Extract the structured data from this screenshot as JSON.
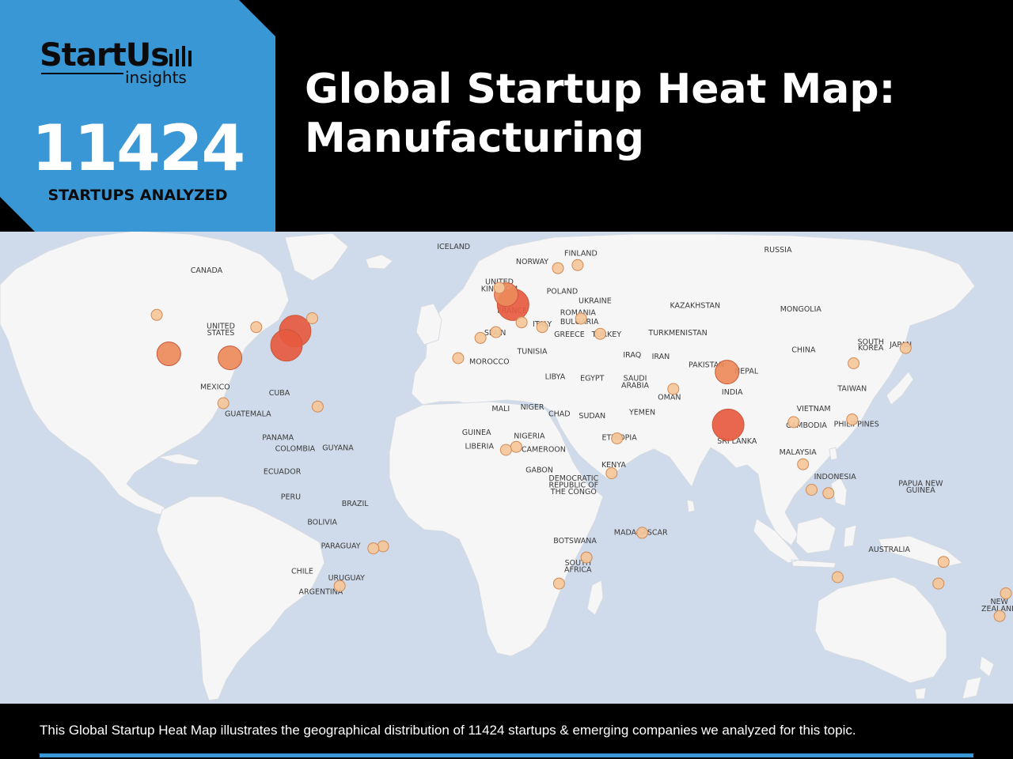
{
  "header": {
    "brand_name": "StartUs",
    "brand_sub": "insights",
    "startups_count": "11424",
    "startups_label": "STARTUPS ANALYZED",
    "title_line1": "Global Startup Heat Map:",
    "title_line2": "Manufacturing"
  },
  "footer": {
    "caption": "This Global Startup Heat Map illustrates the geographical distribution of 11424 startups & emerging companies we analyzed for this topic."
  },
  "colors": {
    "brand_blue": "#3a97d5",
    "ocean": "#cfdbea",
    "land": "#f6f6f6",
    "hot": "#e65a3f",
    "warm": "#eb8a5a",
    "cool": "#f5c79a"
  },
  "map": {
    "labels": [
      {
        "text": "ICELAND",
        "lon": -18.5,
        "lat": 65.0
      },
      {
        "text": "FINLAND",
        "lon": 26.0,
        "lat": 63.0
      },
      {
        "text": "RUSSIA",
        "lon": 95.0,
        "lat": 64.0
      },
      {
        "text": "CANADA",
        "lon": -105.0,
        "lat": 58.0
      },
      {
        "text": "NORWAY",
        "lon": 9.0,
        "lat": 60.5
      },
      {
        "text": "UNITED",
        "lon": -2.5,
        "lat": 54.5
      },
      {
        "text": "KINGDOM",
        "lon": -2.5,
        "lat": 52.5
      },
      {
        "text": "POLAND",
        "lon": 19.5,
        "lat": 51.8
      },
      {
        "text": "UKRAINE",
        "lon": 31.0,
        "lat": 49.0
      },
      {
        "text": "KAZAKHSTAN",
        "lon": 66.0,
        "lat": 47.5
      },
      {
        "text": "MONGOLIA",
        "lon": 103.0,
        "lat": 46.5
      },
      {
        "text": "FRANCE",
        "lon": 2.0,
        "lat": 46.0
      },
      {
        "text": "ROMANIA",
        "lon": 25.0,
        "lat": 45.5
      },
      {
        "text": "ITALY",
        "lon": 12.5,
        "lat": 42.0
      },
      {
        "text": "BULGARIA",
        "lon": 25.5,
        "lat": 42.7
      },
      {
        "text": "UNITED",
        "lon": -100.0,
        "lat": 41.5
      },
      {
        "text": "STATES",
        "lon": -100.0,
        "lat": 39.5
      },
      {
        "text": "SPAIN",
        "lon": -4.0,
        "lat": 39.5
      },
      {
        "text": "GREECE",
        "lon": 22.0,
        "lat": 39.0
      },
      {
        "text": "TURKEY",
        "lon": 35.0,
        "lat": 39.0
      },
      {
        "text": "TURKMENISTAN",
        "lon": 60.0,
        "lat": 39.5
      },
      {
        "text": "SOUTH",
        "lon": 127.5,
        "lat": 36.8
      },
      {
        "text": "KOREA",
        "lon": 127.5,
        "lat": 35.0
      },
      {
        "text": "JAPAN",
        "lon": 138.0,
        "lat": 36.0
      },
      {
        "text": "TUNISIA",
        "lon": 9.0,
        "lat": 34.0
      },
      {
        "text": "IRAQ",
        "lon": 44.0,
        "lat": 33.0
      },
      {
        "text": "IRAN",
        "lon": 54.0,
        "lat": 32.5
      },
      {
        "text": "CHINA",
        "lon": 104.0,
        "lat": 34.5
      },
      {
        "text": "MOROCCO",
        "lon": -6.0,
        "lat": 31.0
      },
      {
        "text": "PAKISTAN",
        "lon": 70.0,
        "lat": 30.0
      },
      {
        "text": "NEPAL",
        "lon": 84.0,
        "lat": 28.2
      },
      {
        "text": "LIBYA",
        "lon": 17.0,
        "lat": 26.5
      },
      {
        "text": "EGYPT",
        "lon": 30.0,
        "lat": 26.0
      },
      {
        "text": "SAUDI",
        "lon": 45.0,
        "lat": 26.0
      },
      {
        "text": "ARABIA",
        "lon": 45.0,
        "lat": 24.0
      },
      {
        "text": "INDIA",
        "lon": 79.0,
        "lat": 22.0
      },
      {
        "text": "TAIWAN",
        "lon": 121.0,
        "lat": 23.0
      },
      {
        "text": "MEXICO",
        "lon": -102.0,
        "lat": 23.5
      },
      {
        "text": "CUBA",
        "lon": -79.5,
        "lat": 21.7
      },
      {
        "text": "OMAN",
        "lon": 57.0,
        "lat": 20.5
      },
      {
        "text": "MALI",
        "lon": -2.0,
        "lat": 17.0
      },
      {
        "text": "NIGER",
        "lon": 9.0,
        "lat": 17.5
      },
      {
        "text": "CHAD",
        "lon": 18.5,
        "lat": 15.5
      },
      {
        "text": "SUDAN",
        "lon": 30.0,
        "lat": 15.0
      },
      {
        "text": "YEMEN",
        "lon": 47.5,
        "lat": 16.0
      },
      {
        "text": "VIETNAM",
        "lon": 107.5,
        "lat": 17.0
      },
      {
        "text": "GUATEMALA",
        "lon": -90.5,
        "lat": 15.5
      },
      {
        "text": "PHILIPPINES",
        "lon": 122.5,
        "lat": 12.5
      },
      {
        "text": "CAMBODIA",
        "lon": 105.0,
        "lat": 12.2
      },
      {
        "text": "ETHIOPIA",
        "lon": 39.5,
        "lat": 8.5
      },
      {
        "text": "GUINEA",
        "lon": -10.5,
        "lat": 10.0
      },
      {
        "text": "NIGERIA",
        "lon": 8.0,
        "lat": 9.0
      },
      {
        "text": "PANAMA",
        "lon": -80.0,
        "lat": 8.5
      },
      {
        "text": "SRI LANKA",
        "lon": 80.7,
        "lat": 7.5
      },
      {
        "text": "COLOMBIA",
        "lon": -74.0,
        "lat": 5.3
      },
      {
        "text": "GUYANA",
        "lon": -59.0,
        "lat": 5.5
      },
      {
        "text": "LIBERIA",
        "lon": -9.5,
        "lat": 6.0
      },
      {
        "text": "CAMEROON",
        "lon": 13.0,
        "lat": 5.0
      },
      {
        "text": "MALAYSIA",
        "lon": 102.0,
        "lat": 4.2
      },
      {
        "text": "KENYA",
        "lon": 37.5,
        "lat": 0.5
      },
      {
        "text": "GABON",
        "lon": 11.5,
        "lat": -1.0
      },
      {
        "text": "ECUADOR",
        "lon": -78.5,
        "lat": -1.5
      },
      {
        "text": "INDONESIA",
        "lon": 115.0,
        "lat": -3.0
      },
      {
        "text": "PAPUA NEW",
        "lon": 145.0,
        "lat": -5.0
      },
      {
        "text": "GUINEA",
        "lon": 145.0,
        "lat": -7.0
      },
      {
        "text": "DEMOCRATIC",
        "lon": 23.5,
        "lat": -3.5
      },
      {
        "text": "REPUBLIC OF",
        "lon": 23.5,
        "lat": -5.5
      },
      {
        "text": "THE CONGO",
        "lon": 23.5,
        "lat": -7.5
      },
      {
        "text": "PERU",
        "lon": -75.5,
        "lat": -9.0
      },
      {
        "text": "BRAZIL",
        "lon": -53.0,
        "lat": -11.0
      },
      {
        "text": "BOLIVIA",
        "lon": -64.5,
        "lat": -16.5
      },
      {
        "text": "MADAGASCAR",
        "lon": 47.0,
        "lat": -19.5
      },
      {
        "text": "AUSTRALIA",
        "lon": 134.0,
        "lat": -24.5
      },
      {
        "text": "PARAGUAY",
        "lon": -58.0,
        "lat": -23.5
      },
      {
        "text": "BOTSWANA",
        "lon": 24.0,
        "lat": -22.0
      },
      {
        "text": "SOUTH",
        "lon": 25.0,
        "lat": -28.5
      },
      {
        "text": "AFRICA",
        "lon": 25.0,
        "lat": -30.5
      },
      {
        "text": "CHILE",
        "lon": -71.5,
        "lat": -31.0
      },
      {
        "text": "URUGUAY",
        "lon": -56.0,
        "lat": -33.0
      },
      {
        "text": "ARGENTINA",
        "lon": -65.0,
        "lat": -37.0
      },
      {
        "text": "NEW",
        "lon": 172.5,
        "lat": -40.0
      },
      {
        "text": "ZEALAND",
        "lon": 172.5,
        "lat": -42.0
      }
    ],
    "hotspots": [
      {
        "lon": 2.3,
        "lat": 48.5,
        "level": "hot"
      },
      {
        "lon": -74.0,
        "lat": 40.7,
        "level": "hot"
      },
      {
        "lon": -77.0,
        "lat": 36.5,
        "level": "hot"
      },
      {
        "lon": 77.2,
        "lat": 28.6,
        "level": "warm"
      },
      {
        "lon": 77.6,
        "lat": 13.0,
        "level": "hot"
      },
      {
        "lon": -0.1,
        "lat": 51.5,
        "level": "warm"
      },
      {
        "lon": -118.2,
        "lat": 34.0,
        "level": "warm"
      },
      {
        "lon": -96.8,
        "lat": 32.8,
        "level": "warm"
      },
      {
        "lon": -122.4,
        "lat": 45.5,
        "level": "cool"
      },
      {
        "lon": -87.6,
        "lat": 41.9,
        "level": "cool"
      },
      {
        "lon": -68.0,
        "lat": 44.5,
        "level": "cool"
      },
      {
        "lon": -2.5,
        "lat": 53.5,
        "level": "cool"
      },
      {
        "lon": 18.0,
        "lat": 59.3,
        "level": "cool"
      },
      {
        "lon": 24.9,
        "lat": 60.2,
        "level": "cool"
      },
      {
        "lon": 26.1,
        "lat": 44.4,
        "level": "cool"
      },
      {
        "lon": -3.7,
        "lat": 40.4,
        "level": "cool"
      },
      {
        "lon": 12.5,
        "lat": 41.9,
        "level": "cool"
      },
      {
        "lon": 32.8,
        "lat": 39.9,
        "level": "cool"
      },
      {
        "lon": 58.4,
        "lat": 23.6,
        "level": "cool"
      },
      {
        "lon": 121.5,
        "lat": 31.2,
        "level": "cool"
      },
      {
        "lon": 139.7,
        "lat": 35.7,
        "level": "cool"
      },
      {
        "lon": 100.5,
        "lat": 13.8,
        "level": "cool"
      },
      {
        "lon": 103.8,
        "lat": 1.35,
        "level": "cool"
      },
      {
        "lon": 106.8,
        "lat": -6.2,
        "level": "cool"
      },
      {
        "lon": 112.7,
        "lat": -7.2,
        "level": "cool"
      },
      {
        "lon": 121.0,
        "lat": 14.6,
        "level": "cool"
      },
      {
        "lon": 151.2,
        "lat": -33.9,
        "level": "cool"
      },
      {
        "lon": 115.9,
        "lat": -32.0,
        "level": "cool"
      },
      {
        "lon": 153.0,
        "lat": -27.5,
        "level": "cool"
      },
      {
        "lon": 174.8,
        "lat": -36.8,
        "level": "cool"
      },
      {
        "lon": 172.6,
        "lat": -43.5,
        "level": "cool"
      },
      {
        "lon": 28.0,
        "lat": -26.2,
        "level": "cool"
      },
      {
        "lon": 18.4,
        "lat": -33.9,
        "level": "cool"
      },
      {
        "lon": 36.8,
        "lat": -1.3,
        "level": "cool"
      },
      {
        "lon": 38.7,
        "lat": 9.0,
        "level": "cool"
      },
      {
        "lon": 3.4,
        "lat": 6.5,
        "level": "cool"
      },
      {
        "lon": -0.2,
        "lat": 5.6,
        "level": "cool"
      },
      {
        "lon": 47.5,
        "lat": -18.9,
        "level": "cool"
      },
      {
        "lon": -99.1,
        "lat": 19.4,
        "level": "cool"
      },
      {
        "lon": -66.1,
        "lat": 18.4,
        "level": "cool"
      },
      {
        "lon": -43.2,
        "lat": -22.9,
        "level": "cool"
      },
      {
        "lon": -46.6,
        "lat": -23.5,
        "level": "cool"
      },
      {
        "lon": -58.4,
        "lat": -34.6,
        "level": "cool"
      },
      {
        "lon": -16.9,
        "lat": 32.7,
        "level": "cool"
      },
      {
        "lon": 5.3,
        "lat": 43.3,
        "level": "cool"
      },
      {
        "lon": -9.1,
        "lat": 38.7,
        "level": "cool"
      }
    ]
  }
}
